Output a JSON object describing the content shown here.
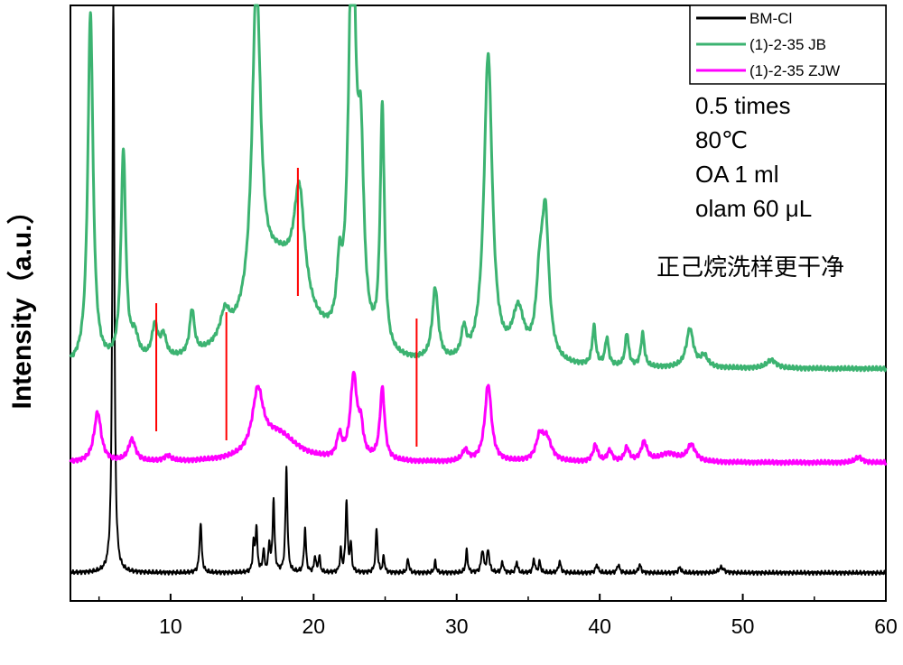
{
  "chart_data": {
    "type": "line",
    "xlabel": "",
    "ylabel": "Intensity（a.u.）",
    "xlim": [
      3,
      60
    ],
    "xticks": [
      10,
      20,
      30,
      40,
      50,
      60
    ],
    "legend_position": "top-right",
    "annotations": [
      "0.5 times",
      "80℃",
      "OA 1 ml",
      "olam 60 μL",
      "正己烷洗样更干净"
    ],
    "series": [
      {
        "name": "BM-Cl",
        "color": "#000000",
        "offset": 0,
        "baseline": 0.02,
        "peaks": [
          [
            6.0,
            1.05,
            0.08
          ],
          [
            12.1,
            0.09,
            0.09
          ],
          [
            15.8,
            0.05,
            0.07
          ],
          [
            16.0,
            0.08,
            0.08
          ],
          [
            16.5,
            0.04,
            0.07
          ],
          [
            16.9,
            0.05,
            0.07
          ],
          [
            17.2,
            0.13,
            0.08
          ],
          [
            18.1,
            0.19,
            0.08
          ],
          [
            19.4,
            0.08,
            0.08
          ],
          [
            20.1,
            0.03,
            0.07
          ],
          [
            20.4,
            0.03,
            0.07
          ],
          [
            21.9,
            0.04,
            0.07
          ],
          [
            22.3,
            0.13,
            0.08
          ],
          [
            22.6,
            0.05,
            0.07
          ],
          [
            24.4,
            0.08,
            0.08
          ],
          [
            24.9,
            0.03,
            0.07
          ],
          [
            26.6,
            0.025,
            0.08
          ],
          [
            28.5,
            0.02,
            0.08
          ],
          [
            30.7,
            0.04,
            0.08
          ],
          [
            31.8,
            0.04,
            0.1
          ],
          [
            32.2,
            0.04,
            0.1
          ],
          [
            33.2,
            0.02,
            0.08
          ],
          [
            34.2,
            0.02,
            0.08
          ],
          [
            35.4,
            0.025,
            0.08
          ],
          [
            35.8,
            0.02,
            0.08
          ],
          [
            37.2,
            0.02,
            0.1
          ],
          [
            39.8,
            0.015,
            0.1
          ],
          [
            41.3,
            0.015,
            0.1
          ],
          [
            42.8,
            0.015,
            0.1
          ],
          [
            45.6,
            0.01,
            0.1
          ],
          [
            48.5,
            0.01,
            0.2
          ]
        ]
      },
      {
        "name": "(1)-2-35 ZJW",
        "color": "#ff00ff",
        "offset": 0.19,
        "baseline": 0.03,
        "peaks": [
          [
            4.9,
            0.09,
            0.3
          ],
          [
            7.3,
            0.04,
            0.3
          ],
          [
            9.8,
            0.01,
            0.3
          ],
          [
            16.1,
            0.11,
            0.45
          ],
          [
            17.5,
            0.05,
            1.6
          ],
          [
            21.8,
            0.04,
            0.2
          ],
          [
            22.8,
            0.15,
            0.28
          ],
          [
            23.3,
            0.05,
            0.2
          ],
          [
            24.8,
            0.13,
            0.2
          ],
          [
            30.6,
            0.02,
            0.25
          ],
          [
            32.2,
            0.14,
            0.28
          ],
          [
            35.8,
            0.04,
            0.3
          ],
          [
            36.3,
            0.04,
            0.4
          ],
          [
            39.7,
            0.03,
            0.2
          ],
          [
            40.7,
            0.02,
            0.2
          ],
          [
            41.9,
            0.025,
            0.2
          ],
          [
            43.1,
            0.035,
            0.25
          ],
          [
            44.8,
            0.015,
            0.8
          ],
          [
            46.4,
            0.03,
            0.35
          ],
          [
            58.1,
            0.01,
            0.3
          ]
        ]
      },
      {
        "name": "(1)-2-35 JB",
        "color": "#3cb371",
        "offset": 0.33,
        "baseline": 0.06,
        "peaks": [
          [
            4.4,
            0.64,
            0.22
          ],
          [
            6.7,
            0.38,
            0.2
          ],
          [
            7.5,
            0.04,
            0.3
          ],
          [
            8.9,
            0.06,
            0.25
          ],
          [
            9.5,
            0.04,
            0.25
          ],
          [
            11.5,
            0.08,
            0.2
          ],
          [
            13.8,
            0.05,
            0.4
          ],
          [
            16.0,
            0.58,
            0.35
          ],
          [
            17.5,
            0.18,
            2.2
          ],
          [
            19.0,
            0.2,
            0.45
          ],
          [
            21.8,
            0.1,
            0.2
          ],
          [
            22.7,
            0.78,
            0.3
          ],
          [
            23.3,
            0.3,
            0.25
          ],
          [
            24.8,
            0.44,
            0.18
          ],
          [
            28.5,
            0.13,
            0.25
          ],
          [
            30.5,
            0.05,
            0.2
          ],
          [
            32.2,
            0.56,
            0.35
          ],
          [
            34.3,
            0.09,
            0.5
          ],
          [
            35.8,
            0.12,
            0.3
          ],
          [
            36.2,
            0.25,
            0.3
          ],
          [
            39.6,
            0.07,
            0.15
          ],
          [
            40.5,
            0.05,
            0.15
          ],
          [
            41.9,
            0.06,
            0.15
          ],
          [
            43.0,
            0.06,
            0.15
          ],
          [
            46.3,
            0.07,
            0.3
          ],
          [
            47.3,
            0.02,
            0.3
          ],
          [
            52.0,
            0.015,
            0.4
          ]
        ]
      }
    ],
    "markers": [
      {
        "x": 9.0,
        "color": "#ff0000"
      },
      {
        "x": 13.9,
        "color": "#ff0000"
      },
      {
        "x": 18.9,
        "color": "#ff0000"
      },
      {
        "x": 27.2,
        "color": "#ff0000"
      }
    ]
  }
}
